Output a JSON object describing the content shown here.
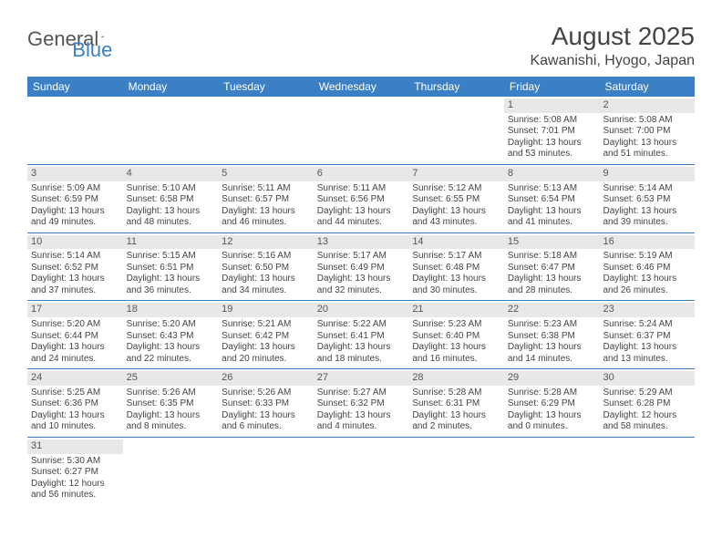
{
  "logo": {
    "word1": "General",
    "word2": "Blue"
  },
  "title": {
    "month": "August 2025",
    "location": "Kawanishi, Hyogo, Japan"
  },
  "colors": {
    "header_bg": "#3b7fc4",
    "header_text": "#ffffff",
    "daynum_bg": "#e8e8e8",
    "text": "#444444",
    "row_divider": "#3b7fc4",
    "page_bg": "#ffffff"
  },
  "dayHeaders": [
    "Sunday",
    "Monday",
    "Tuesday",
    "Wednesday",
    "Thursday",
    "Friday",
    "Saturday"
  ],
  "weeks": [
    [
      null,
      null,
      null,
      null,
      null,
      {
        "n": "1",
        "sr": "Sunrise: 5:08 AM",
        "ss": "Sunset: 7:01 PM",
        "d1": "Daylight: 13 hours",
        "d2": "and 53 minutes."
      },
      {
        "n": "2",
        "sr": "Sunrise: 5:08 AM",
        "ss": "Sunset: 7:00 PM",
        "d1": "Daylight: 13 hours",
        "d2": "and 51 minutes."
      }
    ],
    [
      {
        "n": "3",
        "sr": "Sunrise: 5:09 AM",
        "ss": "Sunset: 6:59 PM",
        "d1": "Daylight: 13 hours",
        "d2": "and 49 minutes."
      },
      {
        "n": "4",
        "sr": "Sunrise: 5:10 AM",
        "ss": "Sunset: 6:58 PM",
        "d1": "Daylight: 13 hours",
        "d2": "and 48 minutes."
      },
      {
        "n": "5",
        "sr": "Sunrise: 5:11 AM",
        "ss": "Sunset: 6:57 PM",
        "d1": "Daylight: 13 hours",
        "d2": "and 46 minutes."
      },
      {
        "n": "6",
        "sr": "Sunrise: 5:11 AM",
        "ss": "Sunset: 6:56 PM",
        "d1": "Daylight: 13 hours",
        "d2": "and 44 minutes."
      },
      {
        "n": "7",
        "sr": "Sunrise: 5:12 AM",
        "ss": "Sunset: 6:55 PM",
        "d1": "Daylight: 13 hours",
        "d2": "and 43 minutes."
      },
      {
        "n": "8",
        "sr": "Sunrise: 5:13 AM",
        "ss": "Sunset: 6:54 PM",
        "d1": "Daylight: 13 hours",
        "d2": "and 41 minutes."
      },
      {
        "n": "9",
        "sr": "Sunrise: 5:14 AM",
        "ss": "Sunset: 6:53 PM",
        "d1": "Daylight: 13 hours",
        "d2": "and 39 minutes."
      }
    ],
    [
      {
        "n": "10",
        "sr": "Sunrise: 5:14 AM",
        "ss": "Sunset: 6:52 PM",
        "d1": "Daylight: 13 hours",
        "d2": "and 37 minutes."
      },
      {
        "n": "11",
        "sr": "Sunrise: 5:15 AM",
        "ss": "Sunset: 6:51 PM",
        "d1": "Daylight: 13 hours",
        "d2": "and 36 minutes."
      },
      {
        "n": "12",
        "sr": "Sunrise: 5:16 AM",
        "ss": "Sunset: 6:50 PM",
        "d1": "Daylight: 13 hours",
        "d2": "and 34 minutes."
      },
      {
        "n": "13",
        "sr": "Sunrise: 5:17 AM",
        "ss": "Sunset: 6:49 PM",
        "d1": "Daylight: 13 hours",
        "d2": "and 32 minutes."
      },
      {
        "n": "14",
        "sr": "Sunrise: 5:17 AM",
        "ss": "Sunset: 6:48 PM",
        "d1": "Daylight: 13 hours",
        "d2": "and 30 minutes."
      },
      {
        "n": "15",
        "sr": "Sunrise: 5:18 AM",
        "ss": "Sunset: 6:47 PM",
        "d1": "Daylight: 13 hours",
        "d2": "and 28 minutes."
      },
      {
        "n": "16",
        "sr": "Sunrise: 5:19 AM",
        "ss": "Sunset: 6:46 PM",
        "d1": "Daylight: 13 hours",
        "d2": "and 26 minutes."
      }
    ],
    [
      {
        "n": "17",
        "sr": "Sunrise: 5:20 AM",
        "ss": "Sunset: 6:44 PM",
        "d1": "Daylight: 13 hours",
        "d2": "and 24 minutes."
      },
      {
        "n": "18",
        "sr": "Sunrise: 5:20 AM",
        "ss": "Sunset: 6:43 PM",
        "d1": "Daylight: 13 hours",
        "d2": "and 22 minutes."
      },
      {
        "n": "19",
        "sr": "Sunrise: 5:21 AM",
        "ss": "Sunset: 6:42 PM",
        "d1": "Daylight: 13 hours",
        "d2": "and 20 minutes."
      },
      {
        "n": "20",
        "sr": "Sunrise: 5:22 AM",
        "ss": "Sunset: 6:41 PM",
        "d1": "Daylight: 13 hours",
        "d2": "and 18 minutes."
      },
      {
        "n": "21",
        "sr": "Sunrise: 5:23 AM",
        "ss": "Sunset: 6:40 PM",
        "d1": "Daylight: 13 hours",
        "d2": "and 16 minutes."
      },
      {
        "n": "22",
        "sr": "Sunrise: 5:23 AM",
        "ss": "Sunset: 6:38 PM",
        "d1": "Daylight: 13 hours",
        "d2": "and 14 minutes."
      },
      {
        "n": "23",
        "sr": "Sunrise: 5:24 AM",
        "ss": "Sunset: 6:37 PM",
        "d1": "Daylight: 13 hours",
        "d2": "and 13 minutes."
      }
    ],
    [
      {
        "n": "24",
        "sr": "Sunrise: 5:25 AM",
        "ss": "Sunset: 6:36 PM",
        "d1": "Daylight: 13 hours",
        "d2": "and 10 minutes."
      },
      {
        "n": "25",
        "sr": "Sunrise: 5:26 AM",
        "ss": "Sunset: 6:35 PM",
        "d1": "Daylight: 13 hours",
        "d2": "and 8 minutes."
      },
      {
        "n": "26",
        "sr": "Sunrise: 5:26 AM",
        "ss": "Sunset: 6:33 PM",
        "d1": "Daylight: 13 hours",
        "d2": "and 6 minutes."
      },
      {
        "n": "27",
        "sr": "Sunrise: 5:27 AM",
        "ss": "Sunset: 6:32 PM",
        "d1": "Daylight: 13 hours",
        "d2": "and 4 minutes."
      },
      {
        "n": "28",
        "sr": "Sunrise: 5:28 AM",
        "ss": "Sunset: 6:31 PM",
        "d1": "Daylight: 13 hours",
        "d2": "and 2 minutes."
      },
      {
        "n": "29",
        "sr": "Sunrise: 5:28 AM",
        "ss": "Sunset: 6:29 PM",
        "d1": "Daylight: 13 hours",
        "d2": "and 0 minutes."
      },
      {
        "n": "30",
        "sr": "Sunrise: 5:29 AM",
        "ss": "Sunset: 6:28 PM",
        "d1": "Daylight: 12 hours",
        "d2": "and 58 minutes."
      }
    ],
    [
      {
        "n": "31",
        "sr": "Sunrise: 5:30 AM",
        "ss": "Sunset: 6:27 PM",
        "d1": "Daylight: 12 hours",
        "d2": "and 56 minutes."
      },
      null,
      null,
      null,
      null,
      null,
      null
    ]
  ]
}
